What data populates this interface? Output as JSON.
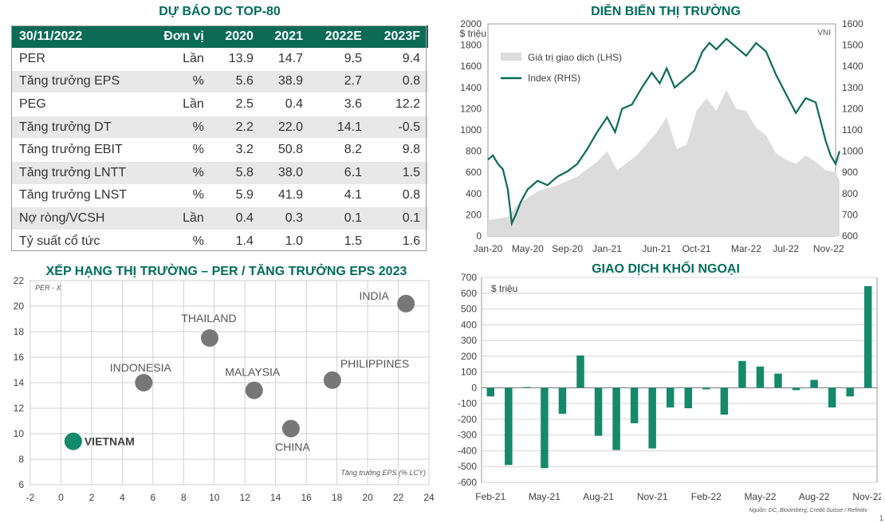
{
  "forecast": {
    "title": "DỰ BÁO DC TOP-80",
    "headers": [
      "30/11/2022",
      "Đơn vị",
      "2020",
      "2021",
      "2022E",
      "2023F"
    ],
    "rows": [
      [
        "PER",
        "Lần",
        "13.9",
        "14.7",
        "9.5",
        "9.4"
      ],
      [
        "Tăng trưởng EPS",
        "%",
        "5.6",
        "38.9",
        "2.7",
        "0.8"
      ],
      [
        "PEG",
        "Lần",
        "2.5",
        "0.4",
        "3.6",
        "12.2"
      ],
      [
        "Tăng trưởng DT",
        "%",
        "2.2",
        "22.0",
        "14.1",
        "-0.5"
      ],
      [
        "Tăng trưởng EBIT",
        "%",
        "3.2",
        "50.8",
        "8.2",
        "9.8"
      ],
      [
        "Tăng trưởng LNTT",
        "%",
        "5.8",
        "38.0",
        "6.1",
        "1.5"
      ],
      [
        "Tăng trưởng LNST",
        "%",
        "5.9",
        "41.9",
        "4.1",
        "0.8"
      ],
      [
        "Nợ ròng/VCSH",
        "Lần",
        "0.4",
        "0.3",
        "0.1",
        "0.1"
      ],
      [
        "Tỷ suất cổ tức",
        "%",
        "1.4",
        "1.0",
        "1.5",
        "1.6"
      ]
    ]
  },
  "colors": {
    "accent": "#0b6b55",
    "title": "#006d5b",
    "vietnam": "#138a6a",
    "bubble": "#777777",
    "area": "#dcdcdc"
  },
  "chart_data": [
    {
      "type": "line",
      "title": "DIỄN BIẾN THỊ TRƯỜNG",
      "ylabel_left": "$ triệu",
      "corner_label": "VNI",
      "legend": [
        "Giá trị giao dịch (LHS)",
        "Index (RHS)"
      ],
      "x_ticks": [
        "Jan-20",
        "May-20",
        "Sep-20",
        "Jan-21",
        "Jun-21",
        "Oct-21",
        "Mar-22",
        "Jul-22",
        "Nov-22"
      ],
      "y_left_ticks": [
        "0",
        "200",
        "400",
        "600",
        "800",
        "1000",
        "1200",
        "1400",
        "1600",
        "1800",
        "2000"
      ],
      "y_right_ticks": [
        "600",
        "700",
        "800",
        "900",
        "1000",
        "1100",
        "1200",
        "1300",
        "1400",
        "1500",
        "1600"
      ],
      "ylim_left": [
        0,
        2000
      ],
      "ylim_right": [
        600,
        1600
      ],
      "x_range_months": [
        0,
        35
      ],
      "index_points": [
        [
          0,
          960
        ],
        [
          0.5,
          980
        ],
        [
          1,
          940
        ],
        [
          1.5,
          915
        ],
        [
          2,
          820
        ],
        [
          2.4,
          660
        ],
        [
          2.8,
          700
        ],
        [
          3.3,
          760
        ],
        [
          4,
          820
        ],
        [
          5,
          860
        ],
        [
          6,
          840
        ],
        [
          7,
          880
        ],
        [
          8,
          905
        ],
        [
          9,
          940
        ],
        [
          10,
          1010
        ],
        [
          11,
          1090
        ],
        [
          12,
          1160
        ],
        [
          12.8,
          1090
        ],
        [
          13.5,
          1200
        ],
        [
          14.5,
          1220
        ],
        [
          15.5,
          1300
        ],
        [
          16.5,
          1370
        ],
        [
          17.3,
          1320
        ],
        [
          18,
          1390
        ],
        [
          18.8,
          1300
        ],
        [
          19.8,
          1340
        ],
        [
          20.8,
          1380
        ],
        [
          21.6,
          1470
        ],
        [
          22.3,
          1510
        ],
        [
          23,
          1480
        ],
        [
          24,
          1530
        ],
        [
          25,
          1490
        ],
        [
          26,
          1450
        ],
        [
          27,
          1510
        ],
        [
          28,
          1470
        ],
        [
          29,
          1360
        ],
        [
          30,
          1270
        ],
        [
          31,
          1180
        ],
        [
          32,
          1250
        ],
        [
          33,
          1230
        ],
        [
          34,
          1050
        ],
        [
          34.5,
          980
        ],
        [
          35,
          940
        ],
        [
          35.4,
          1000
        ]
      ],
      "value_points": [
        [
          0,
          150
        ],
        [
          2,
          180
        ],
        [
          3,
          300
        ],
        [
          5,
          420
        ],
        [
          7,
          480
        ],
        [
          9,
          560
        ],
        [
          11,
          700
        ],
        [
          12,
          800
        ],
        [
          13,
          620
        ],
        [
          15,
          760
        ],
        [
          17,
          980
        ],
        [
          18,
          1120
        ],
        [
          19,
          820
        ],
        [
          20,
          860
        ],
        [
          21,
          1180
        ],
        [
          22,
          1300
        ],
        [
          23,
          1180
        ],
        [
          24,
          1380
        ],
        [
          25,
          1200
        ],
        [
          26,
          1180
        ],
        [
          27,
          1020
        ],
        [
          28,
          950
        ],
        [
          29,
          780
        ],
        [
          30,
          720
        ],
        [
          31,
          680
        ],
        [
          32,
          760
        ],
        [
          33,
          700
        ],
        [
          34,
          620
        ],
        [
          35,
          600
        ],
        [
          35.4,
          520
        ]
      ]
    },
    {
      "type": "scatter",
      "title": "XẾP HẠNG THỊ TRƯỜNG – PER / TĂNG TRƯỞNG EPS 2023",
      "ylabel": "PER - X",
      "xlabel": "Tăng trưởng EPS (% LCY)",
      "xlim": [
        -2,
        24
      ],
      "ylim": [
        6,
        22
      ],
      "x_ticks": [
        "-2",
        "0",
        "2",
        "4",
        "6",
        "8",
        "10",
        "12",
        "14",
        "16",
        "18",
        "20",
        "22",
        "24"
      ],
      "y_ticks": [
        "6",
        "8",
        "10",
        "12",
        "14",
        "16",
        "18",
        "20",
        "22"
      ],
      "points": [
        {
          "label": "VIETNAM",
          "x": 0.8,
          "y": 9.4,
          "highlight": true
        },
        {
          "label": "INDONESIA",
          "x": 5.4,
          "y": 14.0
        },
        {
          "label": "THAILAND",
          "x": 9.7,
          "y": 17.5
        },
        {
          "label": "MALAYSIA",
          "x": 12.6,
          "y": 13.4
        },
        {
          "label": "CHINA",
          "x": 15.0,
          "y": 10.4
        },
        {
          "label": "PHILIPPINES",
          "x": 17.7,
          "y": 14.2
        },
        {
          "label": "INDIA",
          "x": 22.5,
          "y": 20.2
        }
      ]
    },
    {
      "type": "bar",
      "title": "GIAO DỊCH KHỐI NGOẠI",
      "ylabel": "$ triệu",
      "ylim": [
        -600,
        700
      ],
      "y_ticks": [
        "-600",
        "-500",
        "-400",
        "-300",
        "-200",
        "-100",
        "0",
        "100",
        "200",
        "300",
        "400",
        "500",
        "600",
        "700"
      ],
      "x_ticks": [
        "Feb-21",
        "May-21",
        "Aug-21",
        "Nov-21",
        "Feb-22",
        "May-22",
        "Aug-22",
        "Nov-22"
      ],
      "values": [
        -55,
        -490,
        5,
        -510,
        -165,
        205,
        -305,
        -395,
        -225,
        -385,
        -125,
        -130,
        -10,
        -170,
        170,
        135,
        90,
        -15,
        50,
        -125,
        -55,
        645
      ]
    }
  ],
  "footer": {
    "source": "Nguồn: DC, Bloomberg, Credit Suisse / Refinitiv",
    "page": "1"
  }
}
